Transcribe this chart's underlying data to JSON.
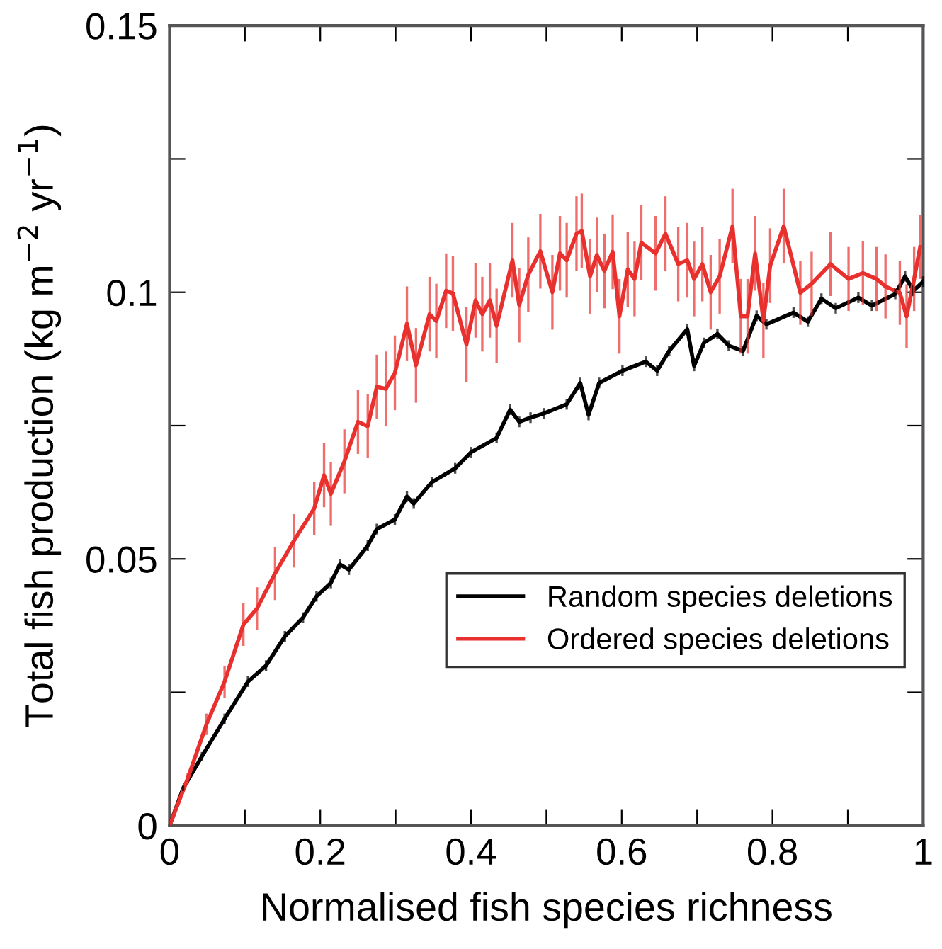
{
  "chart_data": {
    "type": "line",
    "xlabel": "Normalised fish species richness",
    "ylabel": "Total fish production (kg m$^{−2}$ yr$^{−1}$)",
    "xlim": [
      0,
      1
    ],
    "ylim": [
      0,
      0.15
    ],
    "xticks": [
      0,
      {
        "value": 0.1,
        "label": null
      },
      0.2,
      {
        "value": 0.3,
        "label": null
      },
      0.4,
      {
        "value": 0.5,
        "label": null
      },
      0.6,
      {
        "value": 0.7,
        "label": null
      },
      0.8,
      {
        "value": 0.9,
        "label": null
      },
      1
    ],
    "yticks": [
      0,
      {
        "value": 0.025,
        "label": null
      },
      0.05,
      {
        "value": 0.075,
        "label": null
      },
      0.1,
      {
        "value": 0.125,
        "label": null
      },
      0.15
    ],
    "grid": false,
    "legend": "bottom right",
    "marker": "none",
    "line_style": "solid",
    "series": [
      {
        "name": "Random species deletions",
        "color": "#000000",
        "x": [
          0,
          0.018,
          0.043,
          0.073,
          0.104,
          0.128,
          0.153,
          0.177,
          0.195,
          0.214,
          0.226,
          0.238,
          0.263,
          0.275,
          0.299,
          0.315,
          0.324,
          0.348,
          0.379,
          0.4,
          0.434,
          0.452,
          0.464,
          0.479,
          0.497,
          0.527,
          0.545,
          0.556,
          0.57,
          0.601,
          0.632,
          0.647,
          0.663,
          0.687,
          0.696,
          0.709,
          0.727,
          0.742,
          0.761,
          0.779,
          0.792,
          0.828,
          0.847,
          0.865,
          0.884,
          0.914,
          0.932,
          0.963,
          0.976,
          0.987,
          1.0
        ],
        "values": [
          0,
          0.007,
          0.013,
          0.02,
          0.027,
          0.03,
          0.0355,
          0.039,
          0.043,
          0.0455,
          0.049,
          0.048,
          0.0525,
          0.0556,
          0.0574,
          0.0617,
          0.0604,
          0.0644,
          0.067,
          0.07,
          0.0727,
          0.078,
          0.0757,
          0.0765,
          0.0773,
          0.079,
          0.083,
          0.077,
          0.083,
          0.0853,
          0.087,
          0.0853,
          0.089,
          0.0931,
          0.0862,
          0.0905,
          0.0922,
          0.09,
          0.089,
          0.0956,
          0.094,
          0.0962,
          0.0945,
          0.0988,
          0.097,
          0.099,
          0.0975,
          0.0997,
          0.103,
          0.1003,
          0.102
        ],
        "errors": [
          0,
          0.0005,
          0.0008,
          0.001,
          0.001,
          0.001,
          0.001,
          0.001,
          0.001,
          0.001,
          0.001,
          0.001,
          0.001,
          0.001,
          0.001,
          0.001,
          0.001,
          0.001,
          0.001,
          0.001,
          0.001,
          0.001,
          0.001,
          0.001,
          0.001,
          0.001,
          0.001,
          0.001,
          0.001,
          0.001,
          0.001,
          0.001,
          0.001,
          0.001,
          0.001,
          0.001,
          0.001,
          0.001,
          0.001,
          0.001,
          0.001,
          0.001,
          0.001,
          0.001,
          0.001,
          0.001,
          0.001,
          0.001,
          0.001,
          0.001,
          0.001
        ]
      },
      {
        "name": "Ordered species deletions",
        "color": "#e8302e",
        "x": [
          0,
          0.024,
          0.049,
          0.073,
          0.098,
          0.116,
          0.14,
          0.165,
          0.192,
          0.205,
          0.214,
          0.232,
          0.25,
          0.263,
          0.275,
          0.287,
          0.299,
          0.315,
          0.327,
          0.345,
          0.354,
          0.367,
          0.376,
          0.394,
          0.406,
          0.415,
          0.425,
          0.434,
          0.455,
          0.464,
          0.476,
          0.492,
          0.508,
          0.518,
          0.527,
          0.54,
          0.547,
          0.558,
          0.567,
          0.577,
          0.588,
          0.597,
          0.608,
          0.617,
          0.626,
          0.645,
          0.658,
          0.675,
          0.687,
          0.696,
          0.707,
          0.718,
          0.73,
          0.747,
          0.758,
          0.767,
          0.777,
          0.788,
          0.797,
          0.815,
          0.837,
          0.852,
          0.877,
          0.901,
          0.92,
          0.938,
          0.95,
          0.969,
          0.978,
          0.988,
          0.996
        ],
        "values": [
          0,
          0.0088,
          0.019,
          0.027,
          0.0377,
          0.0407,
          0.0473,
          0.0534,
          0.0595,
          0.0657,
          0.0622,
          0.0683,
          0.0757,
          0.0749,
          0.0823,
          0.0819,
          0.0849,
          0.0941,
          0.0863,
          0.0959,
          0.0946,
          0.1003,
          0.0998,
          0.0902,
          0.0985,
          0.0959,
          0.0985,
          0.0937,
          0.106,
          0.0976,
          0.1033,
          0.1077,
          0.1,
          0.1073,
          0.106,
          0.111,
          0.1115,
          0.103,
          0.107,
          0.104,
          0.1076,
          0.0955,
          0.1043,
          0.1025,
          0.1093,
          0.1073,
          0.111,
          0.1053,
          0.106,
          0.1025,
          0.1053,
          0.1,
          0.103,
          0.1124,
          0.0955,
          0.0955,
          0.1073,
          0.0947,
          0.105,
          0.1124,
          0.0999,
          0.1016,
          0.1053,
          0.1025,
          0.1036,
          0.1025,
          0.1011,
          0.0999,
          0.0955,
          0.1025,
          0.1085
        ],
        "errors": [
          0,
          0.001,
          0.002,
          0.003,
          0.004,
          0.004,
          0.005,
          0.005,
          0.005,
          0.006,
          0.006,
          0.006,
          0.006,
          0.006,
          0.006,
          0.007,
          0.007,
          0.007,
          0.007,
          0.007,
          0.007,
          0.007,
          0.007,
          0.007,
          0.007,
          0.007,
          0.007,
          0.007,
          0.007,
          0.007,
          0.007,
          0.007,
          0.007,
          0.007,
          0.007,
          0.007,
          0.007,
          0.007,
          0.007,
          0.007,
          0.007,
          0.007,
          0.007,
          0.007,
          0.007,
          0.007,
          0.007,
          0.007,
          0.007,
          0.007,
          0.007,
          0.007,
          0.007,
          0.007,
          0.007,
          0.007,
          0.007,
          0.007,
          0.007,
          0.007,
          0.006,
          0.006,
          0.006,
          0.006,
          0.006,
          0.006,
          0.006,
          0.006,
          0.006,
          0.006,
          0.006
        ]
      }
    ]
  }
}
